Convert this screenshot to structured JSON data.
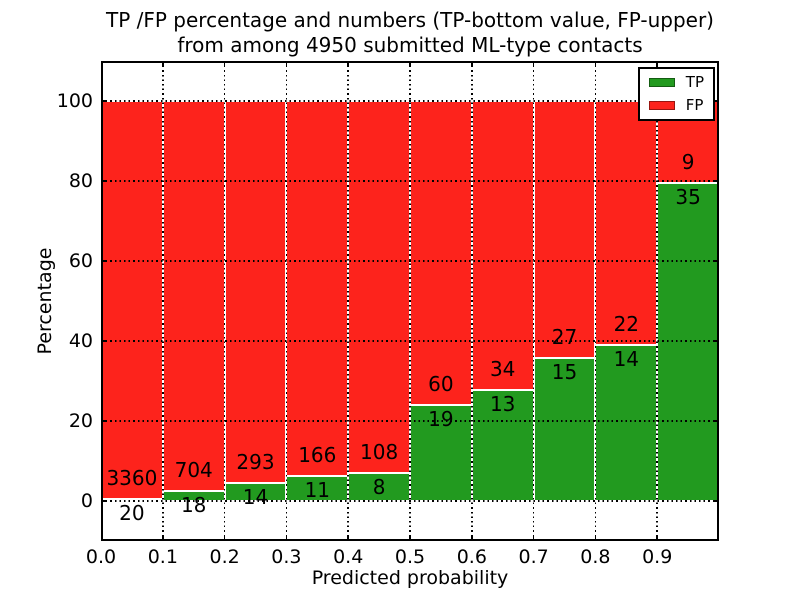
{
  "figure": {
    "title_line1": "TP /FP percentage and numbers (TP-bottom value, FP-upper)",
    "title_line2": "from among 4950 submitted ML-type contacts",
    "background": "#ffffff",
    "total_contacts": 4950
  },
  "chart_data": {
    "type": "bar",
    "stacked": true,
    "normalized_to_percent": true,
    "title": "TP /FP percentage and numbers (TP-bottom value, FP-upper)\nfrom among 4950 submitted ML-type contacts",
    "xlabel": "Predicted probability",
    "ylabel": "Percentage",
    "xlim": [
      0.0,
      1.0
    ],
    "ylim": [
      -10,
      110
    ],
    "xticks": [
      "0.0",
      "0.1",
      "0.2",
      "0.3",
      "0.4",
      "0.5",
      "0.6",
      "0.7",
      "0.8",
      "0.9"
    ],
    "yticks": [
      0,
      20,
      40,
      60,
      80,
      100
    ],
    "grid": true,
    "grid_style": "dotted",
    "legend": {
      "position": "upper right",
      "entries": [
        {
          "label": "TP",
          "color": "#229a1f"
        },
        {
          "label": "FP",
          "color": "#fd231c"
        }
      ]
    },
    "colors": {
      "tp": "#229a1f",
      "fp": "#fd231c",
      "bar_edge": "#ffffff",
      "text": "#000000"
    },
    "categories": [
      "0.0-0.1",
      "0.1-0.2",
      "0.2-0.3",
      "0.3-0.4",
      "0.4-0.5",
      "0.5-0.6",
      "0.6-0.7",
      "0.7-0.8",
      "0.8-0.9",
      "0.9-1.0"
    ],
    "bars": [
      {
        "bin_start": 0.0,
        "bin_end": 0.1,
        "tp_count": 20,
        "fp_count": 3360,
        "tp_pct": 0.59,
        "fp_pct": 99.41
      },
      {
        "bin_start": 0.1,
        "bin_end": 0.2,
        "tp_count": 18,
        "fp_count": 704,
        "tp_pct": 2.49,
        "fp_pct": 97.51
      },
      {
        "bin_start": 0.2,
        "bin_end": 0.3,
        "tp_count": 14,
        "fp_count": 293,
        "tp_pct": 4.56,
        "fp_pct": 95.44
      },
      {
        "bin_start": 0.3,
        "bin_end": 0.4,
        "tp_count": 11,
        "fp_count": 166,
        "tp_pct": 6.21,
        "fp_pct": 93.79
      },
      {
        "bin_start": 0.4,
        "bin_end": 0.5,
        "tp_count": 8,
        "fp_count": 108,
        "tp_pct": 6.9,
        "fp_pct": 93.1
      },
      {
        "bin_start": 0.5,
        "bin_end": 0.6,
        "tp_count": 19,
        "fp_count": 60,
        "tp_pct": 24.05,
        "fp_pct": 75.95
      },
      {
        "bin_start": 0.6,
        "bin_end": 0.7,
        "tp_count": 13,
        "fp_count": 34,
        "tp_pct": 27.66,
        "fp_pct": 72.34
      },
      {
        "bin_start": 0.7,
        "bin_end": 0.8,
        "tp_count": 15,
        "fp_count": 27,
        "tp_pct": 35.71,
        "fp_pct": 64.29
      },
      {
        "bin_start": 0.8,
        "bin_end": 0.9,
        "tp_count": 14,
        "fp_count": 22,
        "tp_pct": 38.89,
        "fp_pct": 61.11
      },
      {
        "bin_start": 0.9,
        "bin_end": 1.0,
        "tp_count": 35,
        "fp_count": 9,
        "tp_pct": 79.55,
        "fp_pct": 20.45
      }
    ]
  }
}
